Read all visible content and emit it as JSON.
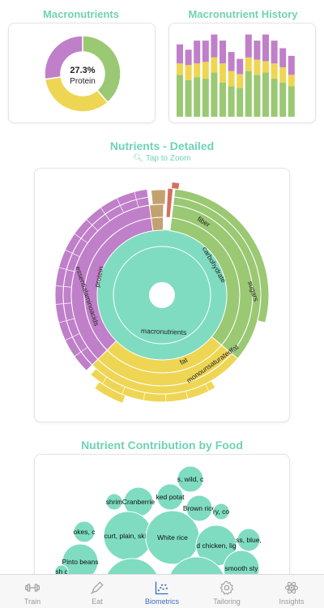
{
  "sections": {
    "macronutrients_title": "Macronutrients",
    "history_title": "Macronutrient History",
    "detailed_title": "Nutrients - Detailed",
    "tap_zoom": "Tap to Zoom",
    "contribution_title": "Nutrient Contribution by Food"
  },
  "colors": {
    "protein": "#c07fc9",
    "carbohydrate": "#9bc873",
    "fat": "#eed654",
    "macro_core": "#7fdcc1",
    "accent": "#6fd3b3",
    "tan": "#c4a171",
    "red": "#d2705e"
  },
  "donut": {
    "center_value": "27.3%",
    "center_label": "Protein"
  },
  "chart_data": [
    {
      "type": "pie",
      "title": "Macronutrients",
      "categories": [
        "Carbohydrate",
        "Fat",
        "Protein"
      ],
      "values": [
        38.5,
        34.2,
        27.3
      ]
    },
    {
      "type": "bar",
      "title": "Macronutrient History",
      "stacked": true,
      "series": [
        {
          "values": [
            55,
            48,
            52,
            50,
            58,
            45,
            40,
            38,
            60,
            55,
            58,
            50,
            45,
            40
          ]
        },
        {
          "values": [
            15,
            20,
            18,
            22,
            20,
            25,
            20,
            18,
            18,
            20,
            15,
            20,
            20,
            15
          ]
        },
        {
          "values": [
            25,
            20,
            30,
            28,
            30,
            30,
            25,
            20,
            30,
            25,
            35,
            30,
            25,
            25
          ]
        }
      ]
    }
  ],
  "sunburst": {
    "labels": {
      "macronutrients": "macronutrients",
      "protein": "protein",
      "essential": "essentialaminoacids",
      "fat": "fat",
      "mono": "monounsaturatedfat",
      "carbohydrate": "carbohydrate",
      "fiber": "fiber",
      "sugars": "sugars"
    }
  },
  "bubbles": [
    {
      "label": "s, wild, c"
    },
    {
      "label": "ked potat"
    },
    {
      "label": "Cranberrie"
    },
    {
      "label": "shrim"
    },
    {
      "label": "Brown rice"
    },
    {
      "label": "ry, co"
    },
    {
      "label": "okes, c"
    },
    {
      "label": "curt, plain, skim"
    },
    {
      "label": "White rice"
    },
    {
      "label": "d chicken, lig"
    },
    {
      "label": "ss, blue,"
    },
    {
      "label": "Pinto beans"
    },
    {
      "label": "smooth sty"
    },
    {
      "label": "sh c"
    },
    {
      "label": ""
    },
    {
      "label": ""
    }
  ],
  "tabs": [
    {
      "label": "Train",
      "icon": "dumbbell-icon"
    },
    {
      "label": "Eat",
      "icon": "pen-icon"
    },
    {
      "label": "Biometrics",
      "icon": "chart-icon"
    },
    {
      "label": "Tailoring",
      "icon": "gear-icon"
    },
    {
      "label": "Insights",
      "icon": "atom-icon"
    }
  ]
}
